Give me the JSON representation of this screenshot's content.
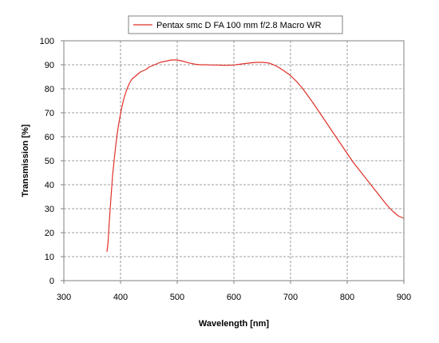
{
  "chart_data": {
    "type": "line",
    "title": "",
    "xlabel": "Wavelength [nm]",
    "ylabel": "Transmission [%]",
    "xlim": [
      300,
      900
    ],
    "ylim": [
      0,
      100
    ],
    "x_ticks": [
      300,
      400,
      500,
      600,
      700,
      800,
      900
    ],
    "y_ticks": [
      0,
      10,
      20,
      30,
      40,
      50,
      60,
      70,
      80,
      90,
      100
    ],
    "grid": true,
    "grid_style": "dashed",
    "legend_position": "top-center",
    "series": [
      {
        "name": "Pentax smc D FA 100 mm f/2.8 Macro WR",
        "color": "#e0302a",
        "x": [
          376,
          378,
          380,
          383,
          386,
          390,
          394,
          398,
          402,
          406,
          410,
          415,
          420,
          425,
          430,
          435,
          440,
          445,
          450,
          455,
          460,
          465,
          470,
          480,
          490,
          500,
          510,
          520,
          530,
          540,
          550,
          560,
          570,
          580,
          590,
          600,
          610,
          620,
          630,
          640,
          650,
          660,
          670,
          680,
          690,
          700,
          710,
          720,
          730,
          740,
          750,
          760,
          770,
          780,
          790,
          800,
          810,
          820,
          830,
          840,
          850,
          860,
          870,
          880,
          890,
          900
        ],
        "y": [
          12,
          16,
          24,
          34,
          44,
          53,
          61,
          67,
          72,
          76,
          79,
          82,
          84,
          85,
          86,
          87,
          87.5,
          88,
          89,
          89.5,
          90,
          90.5,
          91,
          91.5,
          92,
          92,
          91.5,
          90.8,
          90.3,
          90,
          90,
          89.9,
          89.9,
          89.8,
          89.8,
          89.9,
          90.2,
          90.5,
          90.8,
          91,
          91,
          90.8,
          90,
          88.8,
          87.2,
          85.5,
          83.2,
          80.5,
          77.3,
          74,
          70.5,
          67,
          63.5,
          60,
          56.5,
          53,
          49.5,
          46.5,
          43.5,
          40.5,
          37.5,
          34.5,
          31.5,
          29,
          27,
          26
        ]
      }
    ]
  }
}
